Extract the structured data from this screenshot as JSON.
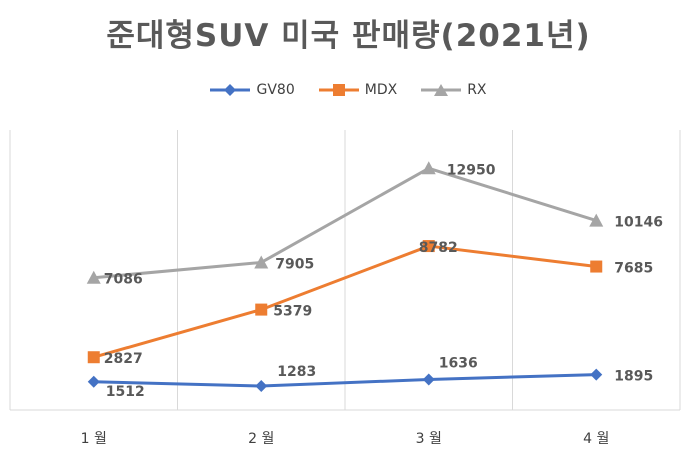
{
  "chart_data": {
    "type": "line",
    "title": "준대형SUV 미국 판매량(2021년)",
    "categories": [
      "1 월",
      "2 월",
      "3 월",
      "4 월"
    ],
    "series": [
      {
        "name": "GV80",
        "values": [
          1512,
          1283,
          1636,
          1895
        ],
        "color": "#4472C4",
        "marker": "diamond"
      },
      {
        "name": "MDX",
        "values": [
          2827,
          5379,
          8782,
          7685
        ],
        "color": "#ED7D31",
        "marker": "square"
      },
      {
        "name": "RX",
        "values": [
          7086,
          7905,
          12950,
          10146
        ],
        "color": "#A5A5A5",
        "marker": "triangle"
      }
    ],
    "ylim": [
      0,
      15000
    ],
    "grid": "vertical",
    "legend_position": "top"
  }
}
